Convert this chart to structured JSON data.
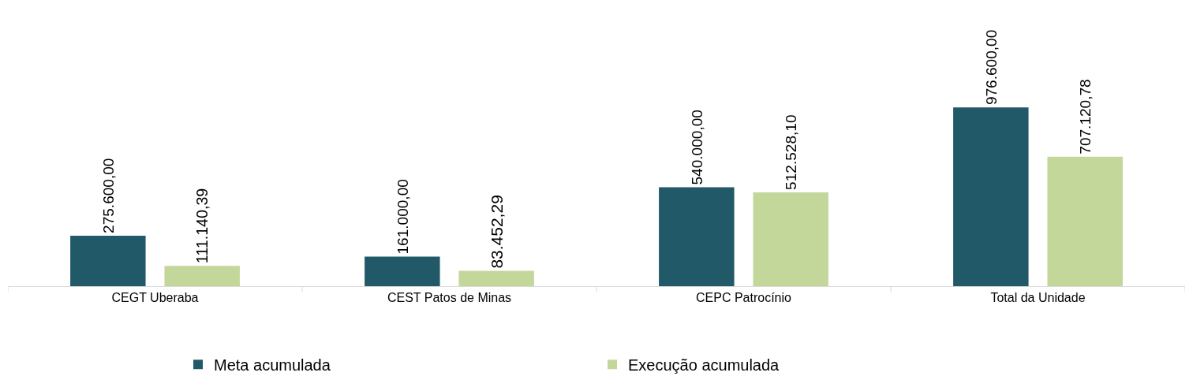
{
  "chart_data": {
    "type": "bar",
    "categories": [
      "CEGT Uberaba",
      "CEST Patos de Minas",
      "CEPC Patrocínio",
      "Total da Unidade"
    ],
    "series": [
      {
        "name": "Meta acumulada",
        "color": "#215968",
        "values": [
          275600.0,
          161000.0,
          540000.0,
          976600.0
        ],
        "value_labels": [
          "275.600,00",
          "161.000,00",
          "540.000,00",
          "976.600,00"
        ]
      },
      {
        "name": "Execução acumulada",
        "color": "#c4d79b",
        "values": [
          111140.39,
          83452.29,
          512528.1,
          707120.78
        ],
        "value_labels": [
          "111.140,39",
          "83.452,29",
          "512.528,10",
          "707.120,78"
        ]
      }
    ],
    "legend": "bottom"
  }
}
